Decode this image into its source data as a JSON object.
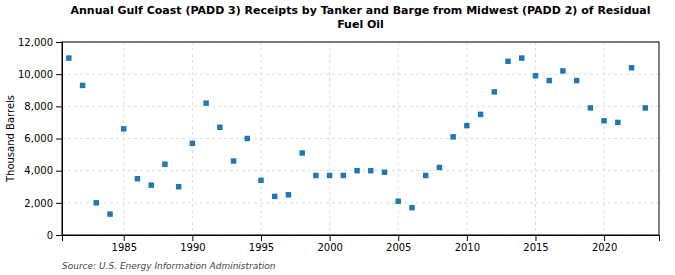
{
  "chart_data": {
    "type": "scatter",
    "title": "Annual Gulf Coast (PADD 3) Receipts by Tanker and Barge from Midwest (PADD 2) of Residual\nFuel Oil",
    "y_label": "Thousand Barrels",
    "annotations": [
      "Source: U.S. Energy Information Administration"
    ],
    "x": [
      1981,
      1982,
      1983,
      1984,
      1985,
      1986,
      1987,
      1988,
      1989,
      1990,
      1991,
      1992,
      1993,
      1994,
      1995,
      1996,
      1997,
      1998,
      1999,
      2000,
      2001,
      2002,
      2003,
      2004,
      2005,
      2006,
      2007,
      2008,
      2009,
      2010,
      2011,
      2012,
      2013,
      2014,
      2015,
      2016,
      2017,
      2018,
      2019,
      2020,
      2021,
      2022,
      2023
    ],
    "values": [
      11000,
      9300,
      2000,
      1300,
      6600,
      3500,
      3100,
      4400,
      3000,
      5700,
      8200,
      6700,
      4600,
      6000,
      3400,
      2400,
      2500,
      5100,
      3700,
      3700,
      3700,
      4000,
      4000,
      3900,
      2100,
      1700,
      3700,
      4200,
      6100,
      6800,
      7500,
      8900,
      10800,
      11000,
      9900,
      9600,
      10200,
      9600,
      7900,
      7100,
      7000,
      10400,
      7900
    ],
    "xlim": [
      1980.5,
      2024
    ],
    "xticks": [
      1985,
      1990,
      1995,
      2000,
      2005,
      2010,
      2015,
      2020
    ],
    "ylim": [
      0,
      12000
    ],
    "yticks": [
      0,
      {
        "value": 2000,
        "label": "2,000"
      },
      {
        "value": 4000,
        "label": "4,000"
      },
      {
        "value": 6000,
        "label": "6,000"
      },
      {
        "value": 8000,
        "label": "8,000"
      },
      {
        "value": 10000,
        "label": "10,000"
      },
      {
        "value": 12000,
        "label": "12,000"
      }
    ],
    "marker": "square",
    "grid": true
  }
}
